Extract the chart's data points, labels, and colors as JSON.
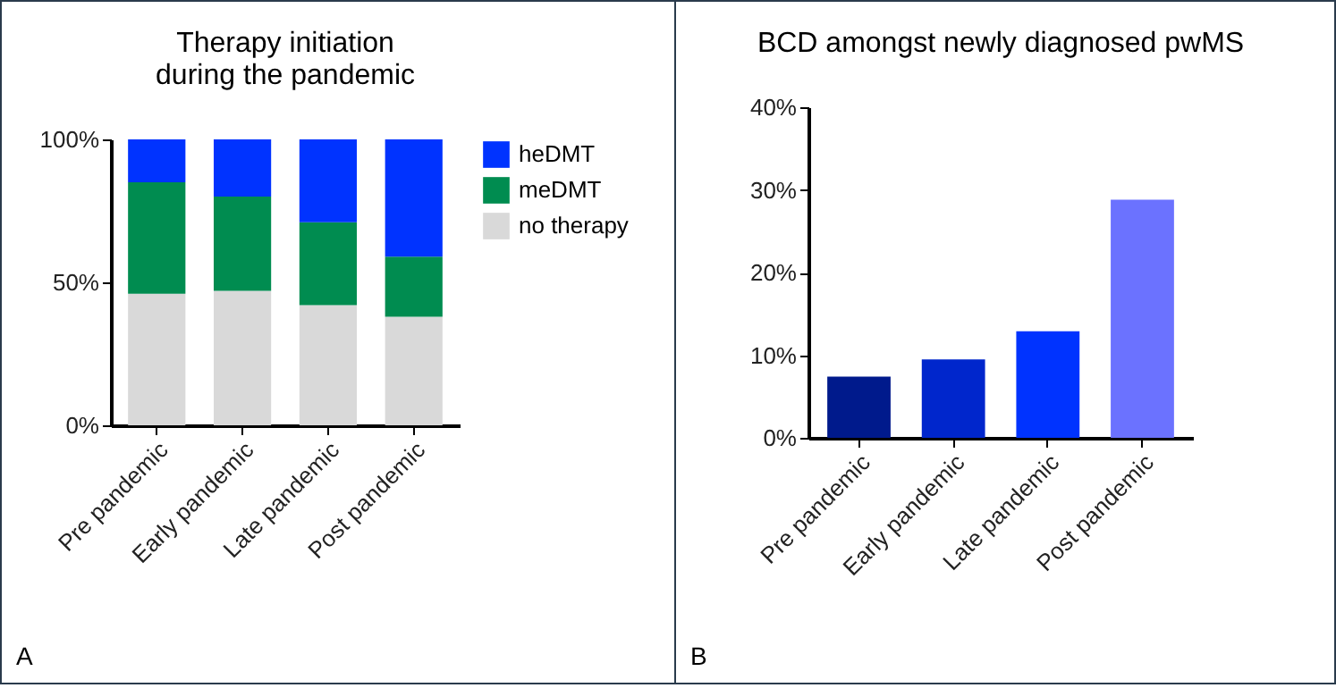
{
  "chart_data": [
    {
      "type": "bar",
      "title": "Therapy initiation\nduring the pandemic",
      "categories": [
        "Pre pandemic",
        "Early pandemic",
        "Late pandemic",
        "Post pandemic"
      ],
      "stacked": true,
      "series": [
        {
          "name": "no therapy",
          "color": "#d9d9d9",
          "values": [
            46,
            47,
            42,
            38
          ]
        },
        {
          "name": "meDMT",
          "color": "#008c50",
          "values": [
            39,
            33,
            29,
            21
          ]
        },
        {
          "name": "heDMT",
          "color": "#0033ff",
          "values": [
            15,
            20,
            29,
            41
          ]
        }
      ],
      "ylim": [
        0,
        100
      ],
      "yticks": [
        {
          "value": 0,
          "label": "0%"
        },
        {
          "value": 50,
          "label": "50%"
        },
        {
          "value": 100,
          "label": "100%"
        }
      ],
      "legend": "right",
      "grid": false,
      "annotations": [
        "A"
      ]
    },
    {
      "type": "bar",
      "title": "BCD amongst newly diagnosed pwMS",
      "categories": [
        "Pre pandemic",
        "Early pandemic",
        "Late pandemic",
        "Post pandemic"
      ],
      "values": [
        7.4,
        9.5,
        12.9,
        28.8
      ],
      "colors": [
        "#001a8c",
        "#0026cc",
        "#0033ff",
        "#6b72ff"
      ],
      "ylim": [
        0,
        40
      ],
      "yticks": [
        {
          "value": 0,
          "label": "0%"
        },
        {
          "value": 10,
          "label": "10%"
        },
        {
          "value": 20,
          "label": "20%"
        },
        {
          "value": 30,
          "label": "30%"
        },
        {
          "value": 40,
          "label": "40%"
        }
      ],
      "grid": false,
      "annotations": [
        "B"
      ]
    }
  ]
}
